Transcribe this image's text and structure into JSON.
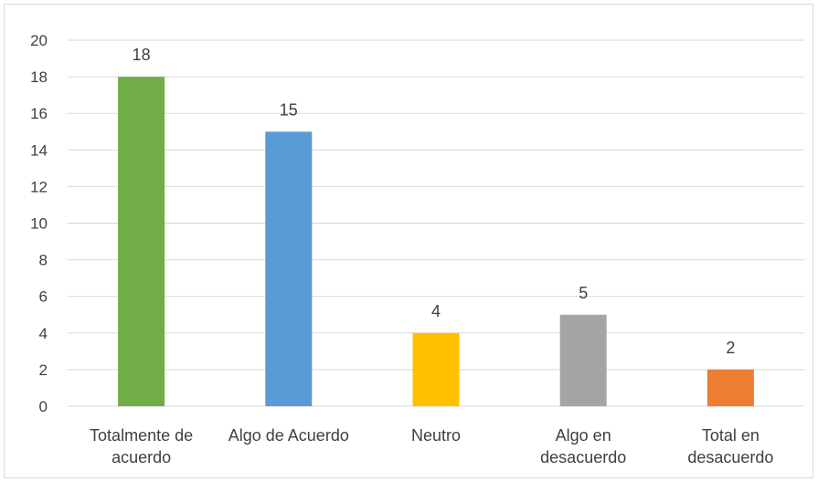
{
  "chart_data": {
    "type": "bar",
    "title": "",
    "xlabel": "",
    "ylabel": "",
    "categories": [
      [
        "Totalmente de",
        "acuerdo"
      ],
      [
        "Algo de Acuerdo"
      ],
      [
        "Neutro"
      ],
      [
        "Algo en",
        "desacuerdo"
      ],
      [
        "Total en",
        "desacuerdo"
      ]
    ],
    "values": [
      18,
      15,
      4,
      5,
      2
    ],
    "colors": [
      "#70ad47",
      "#5b9bd5",
      "#ffc000",
      "#a5a5a5",
      "#ed7d31"
    ],
    "ylim": [
      0,
      20
    ],
    "yticks": [
      0,
      2,
      4,
      6,
      8,
      10,
      12,
      14,
      16,
      18,
      20
    ],
    "grid": true,
    "legend": "none",
    "data_labels": true
  }
}
